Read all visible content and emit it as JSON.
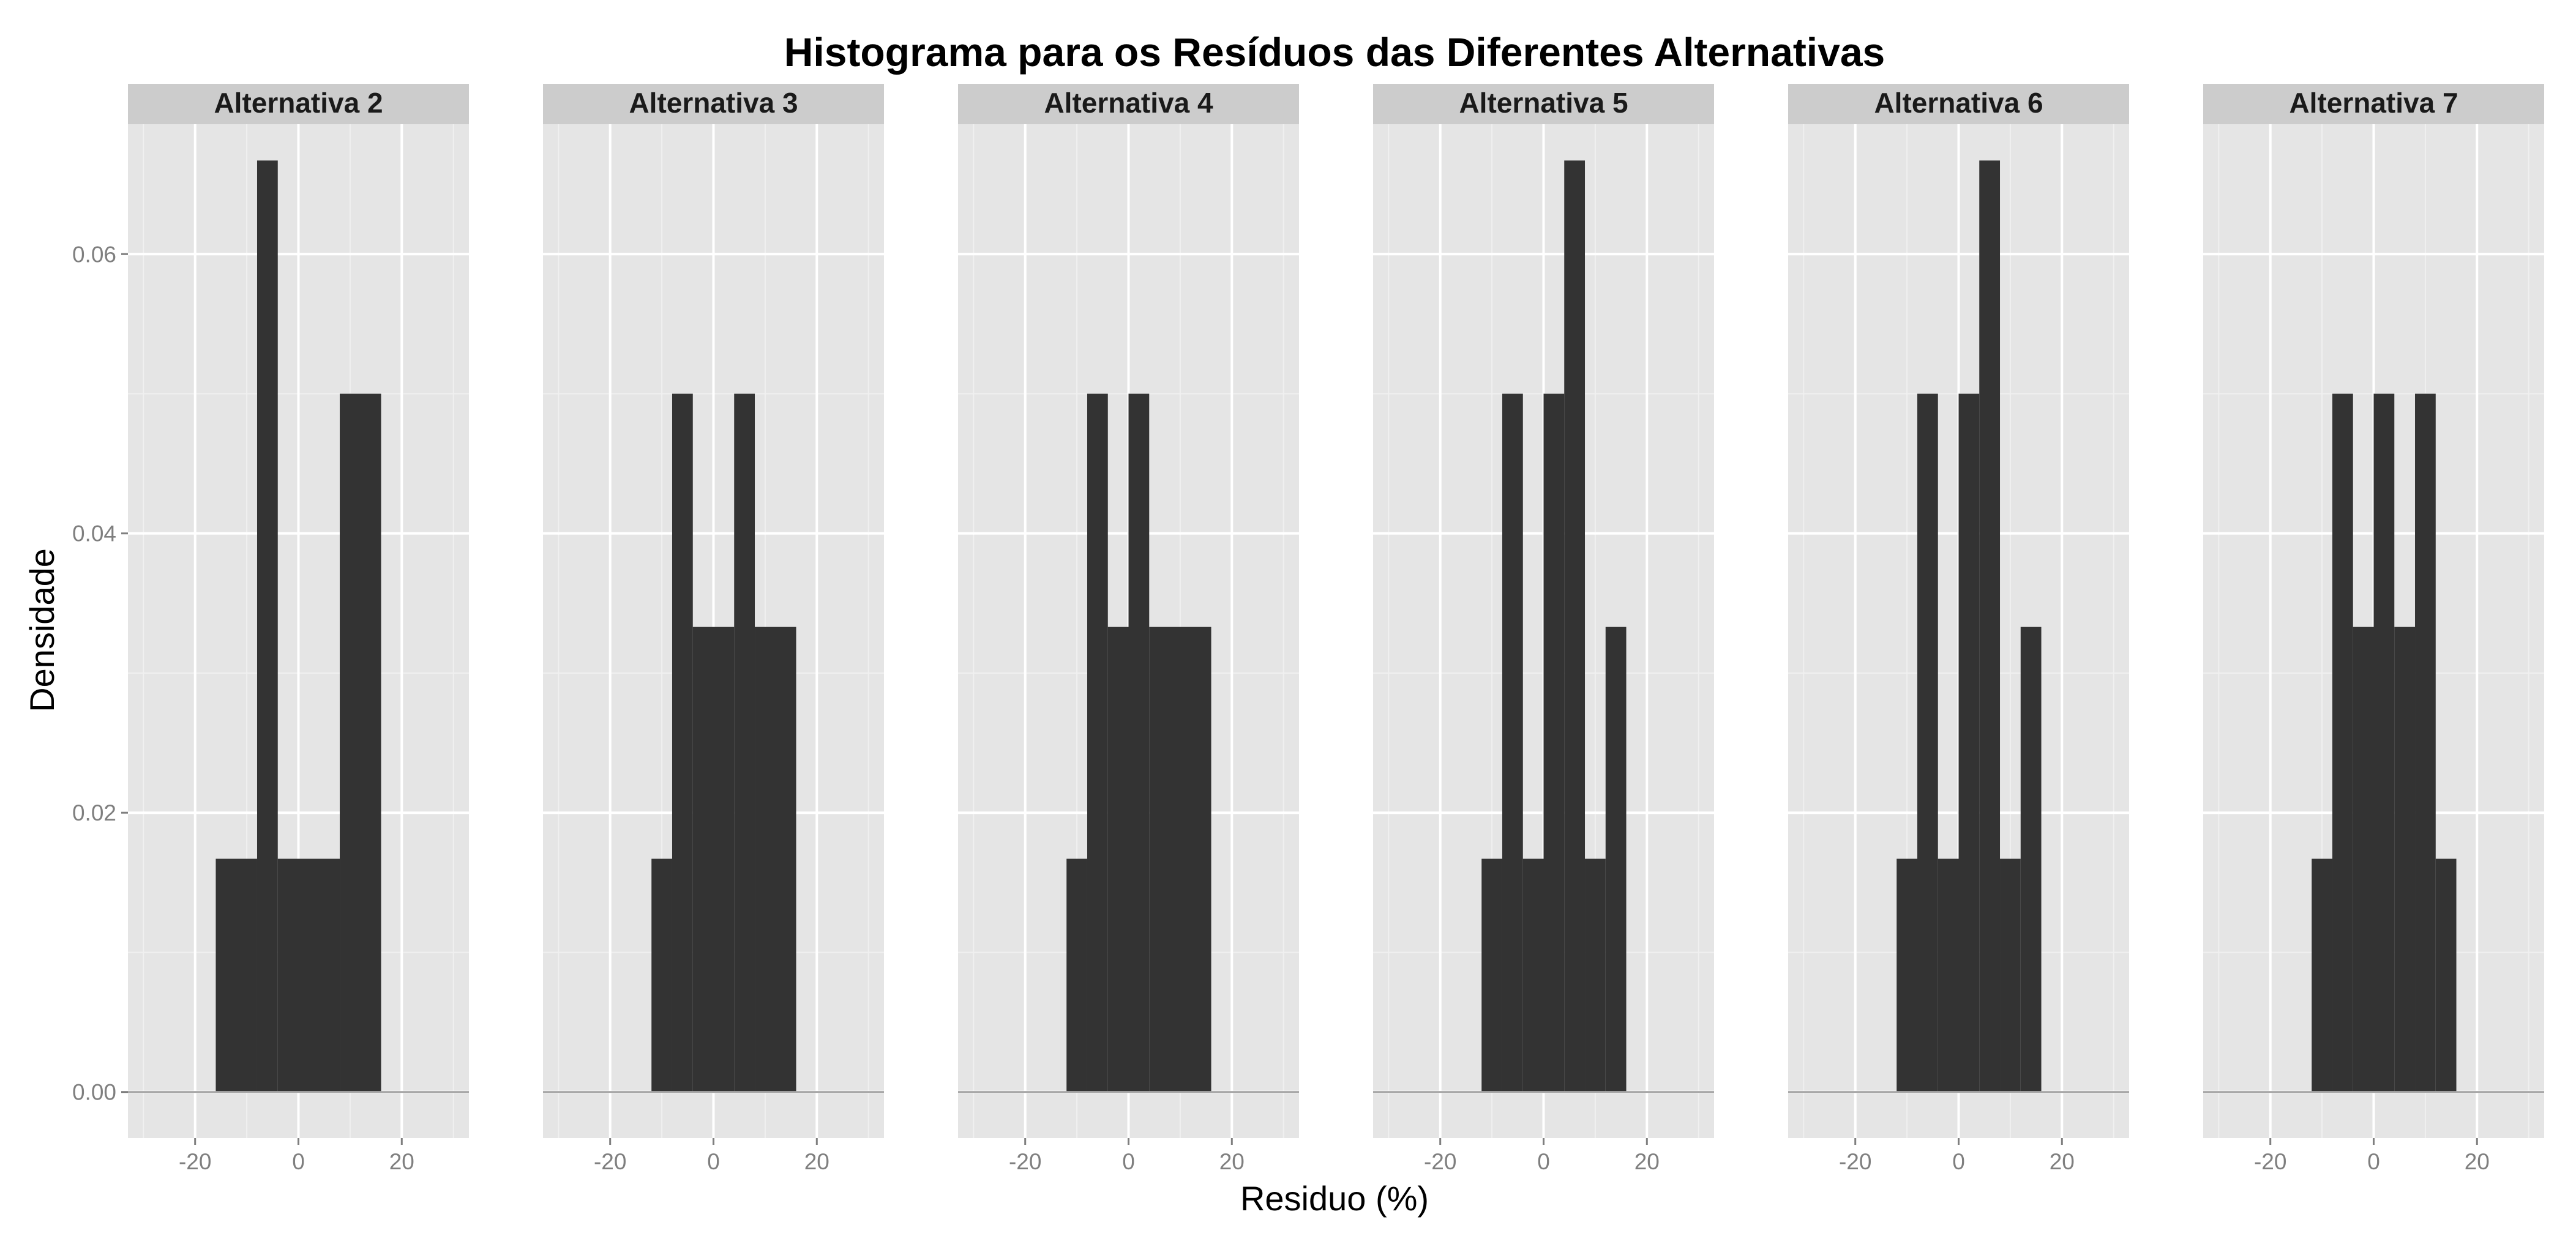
{
  "chart_data": {
    "type": "histogram",
    "title": "Histograma para os Resíduos das Diferentes Alternativas",
    "xlabel": "Residuo (%)",
    "ylabel": "Densidade",
    "xlim": [
      -33,
      33
    ],
    "ylim": [
      -0.0033,
      0.0693
    ],
    "x_ticks": [
      -20,
      0,
      20
    ],
    "x_tick_labels": [
      "-20",
      "0",
      "20"
    ],
    "y_ticks": [
      0.0,
      0.02,
      0.04,
      0.06
    ],
    "y_tick_labels": [
      "0.00",
      "0.02",
      "0.04",
      "0.06"
    ],
    "bin_width": 4,
    "grid": true,
    "colors": {
      "panel_background": "#e5e5e5",
      "strip_background": "#cccccc",
      "bar_fill": "#333333",
      "grid_major": "#ffffff",
      "grid_minor": "#f0f0f0",
      "baseline": "#a8a8a8",
      "tick_label": "#7f7f7f"
    },
    "panels": [
      {
        "label": "Alternativa 2",
        "bins": [
          {
            "x0": -16,
            "x1": -8,
            "density": 0.0167
          },
          {
            "x0": -8,
            "x1": -4,
            "density": 0.0667
          },
          {
            "x0": -4,
            "x1": 8,
            "density": 0.0167
          },
          {
            "x0": 8,
            "x1": 16,
            "density": 0.05
          }
        ]
      },
      {
        "label": "Alternativa 3",
        "bins": [
          {
            "x0": -12,
            "x1": -8,
            "density": 0.0167
          },
          {
            "x0": -8,
            "x1": -4,
            "density": 0.05
          },
          {
            "x0": -4,
            "x1": 4,
            "density": 0.0333
          },
          {
            "x0": 4,
            "x1": 8,
            "density": 0.05
          },
          {
            "x0": 8,
            "x1": 16,
            "density": 0.0333
          }
        ]
      },
      {
        "label": "Alternativa 4",
        "bins": [
          {
            "x0": -12,
            "x1": -8,
            "density": 0.0167
          },
          {
            "x0": -8,
            "x1": -4,
            "density": 0.05
          },
          {
            "x0": -4,
            "x1": 0,
            "density": 0.0333
          },
          {
            "x0": 0,
            "x1": 4,
            "density": 0.05
          },
          {
            "x0": 4,
            "x1": 16,
            "density": 0.0333
          }
        ]
      },
      {
        "label": "Alternativa 5",
        "bins": [
          {
            "x0": -12,
            "x1": -8,
            "density": 0.0167
          },
          {
            "x0": -8,
            "x1": -4,
            "density": 0.05
          },
          {
            "x0": -4,
            "x1": 0,
            "density": 0.0167
          },
          {
            "x0": 0,
            "x1": 4,
            "density": 0.05
          },
          {
            "x0": 4,
            "x1": 8,
            "density": 0.0667
          },
          {
            "x0": 8,
            "x1": 12,
            "density": 0.0167
          },
          {
            "x0": 12,
            "x1": 16,
            "density": 0.0333
          }
        ]
      },
      {
        "label": "Alternativa 6",
        "bins": [
          {
            "x0": -12,
            "x1": -8,
            "density": 0.0167
          },
          {
            "x0": -8,
            "x1": -4,
            "density": 0.05
          },
          {
            "x0": -4,
            "x1": 0,
            "density": 0.0167
          },
          {
            "x0": 0,
            "x1": 4,
            "density": 0.05
          },
          {
            "x0": 4,
            "x1": 8,
            "density": 0.0667
          },
          {
            "x0": 8,
            "x1": 12,
            "density": 0.0167
          },
          {
            "x0": 12,
            "x1": 16,
            "density": 0.0333
          }
        ]
      },
      {
        "label": "Alternativa 7",
        "bins": [
          {
            "x0": -12,
            "x1": -8,
            "density": 0.0167
          },
          {
            "x0": -8,
            "x1": -4,
            "density": 0.05
          },
          {
            "x0": -4,
            "x1": 0,
            "density": 0.0333
          },
          {
            "x0": 0,
            "x1": 4,
            "density": 0.05
          },
          {
            "x0": 4,
            "x1": 8,
            "density": 0.0333
          },
          {
            "x0": 8,
            "x1": 12,
            "density": 0.05
          },
          {
            "x0": 12,
            "x1": 16,
            "density": 0.0167
          }
        ]
      }
    ]
  }
}
